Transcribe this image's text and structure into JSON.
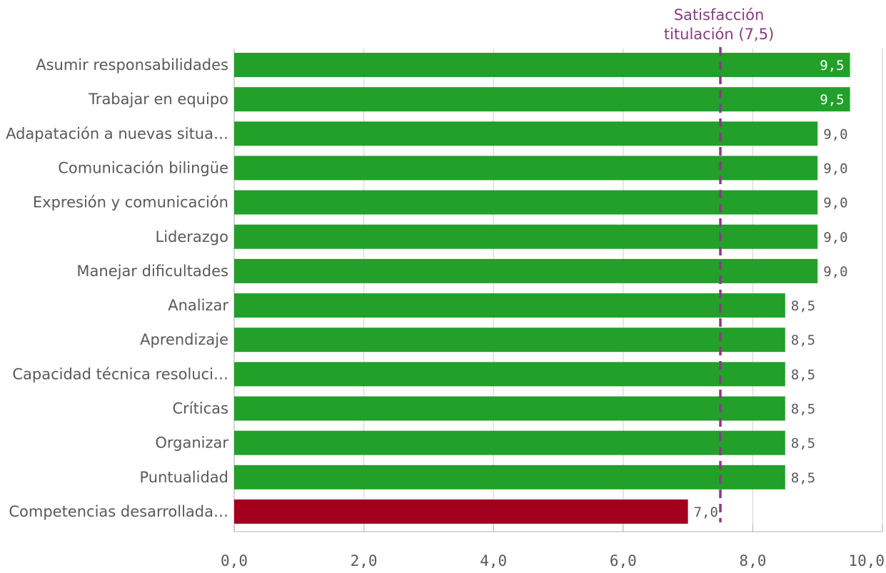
{
  "chart_data": {
    "type": "bar",
    "orientation": "horizontal",
    "categories": [
      "Asumir responsabilidades",
      "Trabajar en equipo",
      "Adapatación a nuevas situa…",
      "Comunicación bilingüe",
      "Expresión y comunicación",
      "Liderazgo",
      "Manejar dificultades",
      "Analizar",
      "Aprendizaje",
      "Capacidad técnica resoluci…",
      "Críticas",
      "Organizar",
      "Puntualidad",
      "Competencias desarrollada…"
    ],
    "values": [
      9.5,
      9.5,
      9.0,
      9.0,
      9.0,
      9.0,
      9.0,
      8.5,
      8.5,
      8.5,
      8.5,
      8.5,
      8.5,
      7.0
    ],
    "value_labels": [
      "9,5",
      "9,5",
      "9,0",
      "9,0",
      "9,0",
      "9,0",
      "9,0",
      "8,5",
      "8,5",
      "8,5",
      "8,5",
      "8,5",
      "8,5",
      "7,0"
    ],
    "bar_colors": [
      "#22a02a",
      "#22a02a",
      "#22a02a",
      "#22a02a",
      "#22a02a",
      "#22a02a",
      "#22a02a",
      "#22a02a",
      "#22a02a",
      "#22a02a",
      "#22a02a",
      "#22a02a",
      "#22a02a",
      "#a3001e"
    ],
    "xlim": [
      0,
      10
    ],
    "xticks": [
      0,
      2,
      4,
      6,
      8,
      10
    ],
    "xtick_labels": [
      "0,0",
      "2,0",
      "4,0",
      "6,0",
      "8,0",
      "10,0"
    ],
    "grid": true,
    "reference_line": {
      "value": 7.5,
      "label_lines": [
        "Satisfacción",
        "titulación (7,5)"
      ],
      "color": "#8b3a83",
      "style": "dashed"
    },
    "colors": {
      "positive": "#22a02a",
      "negative": "#a3001e",
      "grid": "#d9d9d9",
      "text": "#595959"
    }
  }
}
